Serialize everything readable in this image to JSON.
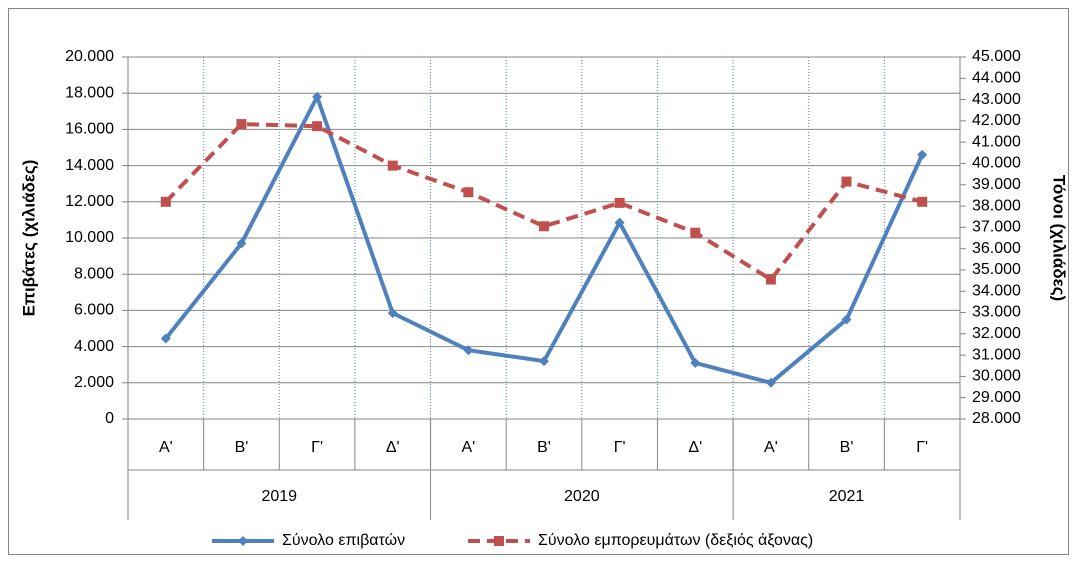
{
  "chart_data": {
    "type": "line",
    "categories": [
      "Α'",
      "Β'",
      "Γ'",
      "Δ'",
      "Α'",
      "Β'",
      "Γ'",
      "Δ'",
      "Α'",
      "Β'",
      "Γ'"
    ],
    "groups": [
      {
        "label": "2019",
        "span": 4
      },
      {
        "label": "2020",
        "span": 4
      },
      {
        "label": "2021",
        "span": 3
      }
    ],
    "ylabel": "Επιβάτες (χιλιάδες)",
    "y2label": "Τόνοι (χιλιάδες)",
    "ylim": [
      0,
      20000
    ],
    "yticks": [
      0,
      {
        "value": 2000,
        "label": "2.000"
      },
      {
        "value": 4000,
        "label": "4.000"
      },
      {
        "value": 6000,
        "label": "6.000"
      },
      {
        "value": 8000,
        "label": "8.000"
      },
      {
        "value": 10000,
        "label": "10.000"
      },
      {
        "value": 12000,
        "label": "12.000"
      },
      {
        "value": 14000,
        "label": "14.000"
      },
      {
        "value": 16000,
        "label": "16.000"
      },
      {
        "value": 18000,
        "label": "18.000"
      },
      {
        "value": 20000,
        "label": "20.000"
      }
    ],
    "y2lim": [
      28000,
      45000
    ],
    "y2ticks": [
      {
        "value": 28000,
        "label": "28.000"
      },
      {
        "value": 29000,
        "label": "29.000"
      },
      {
        "value": 30000,
        "label": "30.000"
      },
      {
        "value": 31000,
        "label": "31.000"
      },
      {
        "value": 32000,
        "label": "32.000"
      },
      {
        "value": 33000,
        "label": "33.000"
      },
      {
        "value": 34000,
        "label": "34.000"
      },
      {
        "value": 35000,
        "label": "35.000"
      },
      {
        "value": 36000,
        "label": "36.000"
      },
      {
        "value": 37000,
        "label": "37.000"
      },
      {
        "value": 38000,
        "label": "38.000"
      },
      {
        "value": 39000,
        "label": "39.000"
      },
      {
        "value": 40000,
        "label": "40.000"
      },
      {
        "value": 41000,
        "label": "41.000"
      },
      {
        "value": 42000,
        "label": "42.000"
      },
      {
        "value": 43000,
        "label": "43.000"
      },
      {
        "value": 44000,
        "label": "44.000"
      },
      {
        "value": 45000,
        "label": "45.000"
      }
    ],
    "grid": true,
    "legend": "bottom",
    "series": [
      {
        "name": "Σύνολο επιβατών",
        "color": "#4f81bd",
        "marker": "diamond",
        "dash": false,
        "values": [
          4450,
          9700,
          17800,
          5850,
          3800,
          3200,
          10850,
          3100,
          2000,
          5500,
          14600
        ]
      },
      {
        "name": "Σύνολο εμπορευμάτων (δεξιός άξονας)",
        "color": "#c0504d",
        "marker": "square",
        "dash": true,
        "axis": "y2",
        "values": [
          38200,
          41850,
          41750,
          39900,
          38650,
          37050,
          38150,
          36750,
          34550,
          39150,
          38200
        ]
      }
    ]
  }
}
